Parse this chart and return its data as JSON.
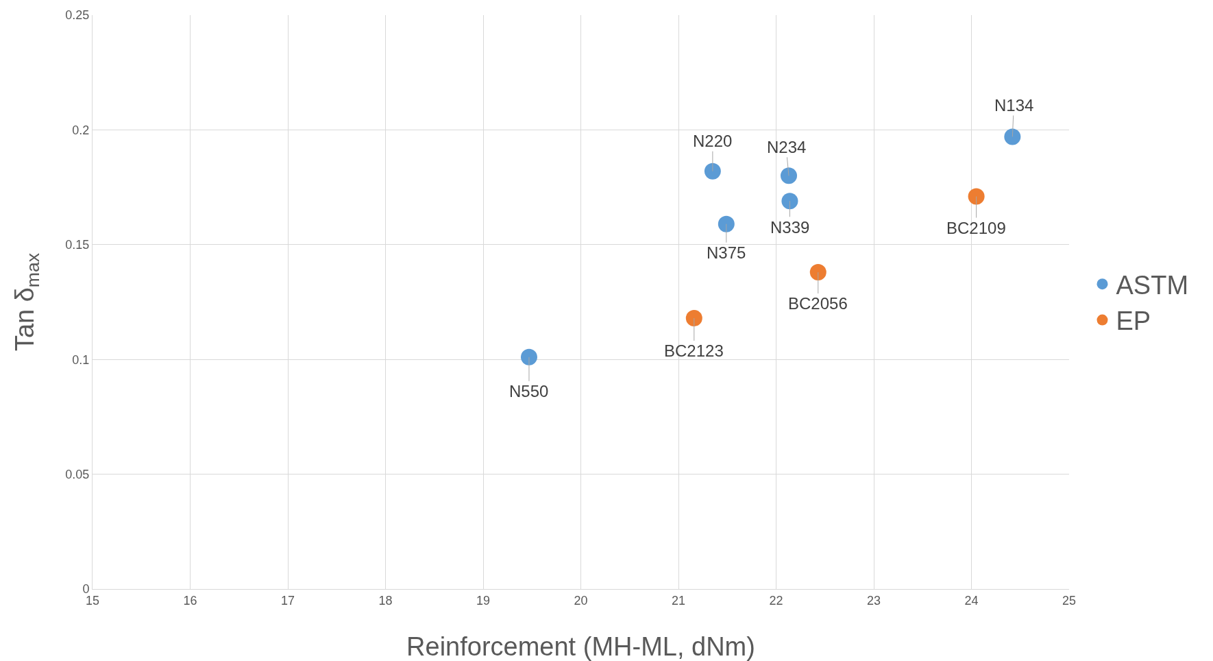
{
  "chart_data": {
    "type": "scatter",
    "xlabel": "Reinforcement (MH-ML, dNm)",
    "ylabel": "Tan δ$_{max}$",
    "series": [
      {
        "name": "ASTM",
        "color": "#5b9bd5",
        "x": [
          19.47,
          21.35,
          21.49,
          22.13,
          22.14,
          24.42
        ],
        "values": [
          0.101,
          0.182,
          0.159,
          0.18,
          0.169,
          0.197
        ]
      },
      {
        "name": "EP",
        "color": "#ed7d31",
        "x": [
          21.16,
          22.43,
          24.05
        ],
        "values": [
          0.118,
          0.138,
          0.171
        ]
      }
    ],
    "xlim": [
      15,
      25
    ],
    "xticks": [
      15,
      16,
      17,
      18,
      19,
      20,
      21,
      22,
      23,
      24,
      25
    ],
    "ylim": [
      0,
      0.25
    ],
    "yticks": [
      0,
      0.05,
      0.1,
      0.15,
      0.2,
      0.25
    ],
    "grid": true,
    "legend": "right",
    "marker": "circle",
    "annotations": [
      {
        "text": "N550",
        "x": 19.47,
        "y": 0.101
      },
      {
        "text": "N220",
        "x": 21.35,
        "y": 0.182
      },
      {
        "text": "N375",
        "x": 21.49,
        "y": 0.159
      },
      {
        "text": "N234",
        "x": 22.13,
        "y": 0.18
      },
      {
        "text": "N339",
        "x": 22.14,
        "y": 0.169
      },
      {
        "text": "N134",
        "x": 24.42,
        "y": 0.197
      },
      {
        "text": "BC2123",
        "x": 21.16,
        "y": 0.118
      },
      {
        "text": "BC2056",
        "x": 22.43,
        "y": 0.138
      },
      {
        "text": "BC2109",
        "x": 24.05,
        "y": 0.171
      }
    ]
  }
}
